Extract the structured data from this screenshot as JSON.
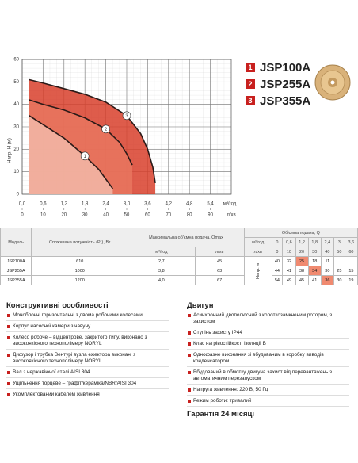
{
  "chart_data": {
    "type": "line",
    "y_label": "Напр. H (м)",
    "x_unit": "м³/год",
    "x2_unit": "л/хв",
    "grid": true,
    "xlim": [
      0,
      6
    ],
    "xticks": [
      {
        "value": 0,
        "label": "0,0"
      },
      {
        "value": 0.6,
        "label": "0,6"
      },
      {
        "value": 1.2,
        "label": "1,2"
      },
      {
        "value": 1.8,
        "label": "1,8"
      },
      {
        "value": 2.4,
        "label": "2,4"
      },
      {
        "value": 3,
        "label": "3,0"
      },
      {
        "value": 3.6,
        "label": "3,6"
      },
      {
        "value": 4.2,
        "label": "4,2"
      },
      {
        "value": 4.8,
        "label": "4,8"
      },
      {
        "value": 5.4,
        "label": "5,4"
      }
    ],
    "x2lim": [
      0,
      100
    ],
    "x2ticks": [
      0,
      10,
      20,
      30,
      40,
      50,
      60,
      70,
      80,
      90
    ],
    "ylim": [
      0,
      60
    ],
    "yticks": [
      0,
      10,
      20,
      30,
      40,
      50,
      60
    ],
    "legend_color": "#c8201e",
    "series": [
      {
        "name": "JSP100A",
        "marker": "1",
        "color": "#f2b8a8",
        "x": [
          0.2,
          0.6,
          1.2,
          1.8,
          2.2,
          2.6
        ],
        "values": [
          35,
          31,
          25,
          17,
          11,
          2.5
        ]
      },
      {
        "name": "JSP255A",
        "marker": "2",
        "color": "#e9765f",
        "x": [
          0.2,
          0.6,
          1.2,
          1.8,
          2.4,
          2.8,
          3,
          3.16
        ],
        "values": [
          42,
          40,
          37.5,
          34,
          29,
          23,
          18,
          13
        ]
      },
      {
        "name": "JSP355A",
        "marker": "3",
        "color": "#d8402c",
        "x": [
          0.2,
          0.6,
          1.2,
          1.8,
          2.4,
          3,
          3.4,
          3.6,
          3.75,
          3.82
        ],
        "values": [
          51,
          49.5,
          47,
          44.5,
          41,
          35,
          27,
          20,
          12,
          5
        ]
      }
    ]
  },
  "table": {
    "headers": {
      "model": "Модель",
      "power": "Споживана потужність (P₁), Вт",
      "qmax": "Максимальна об'ємна подача, Qmax",
      "qmax_units": [
        "м³/год",
        "л/хв"
      ],
      "flow": "Об'ємна подача, Q",
      "flow_units": [
        "м³/год",
        "л/хв"
      ],
      "flow_m3h": [
        "0",
        "0,6",
        "1,2",
        "1,8",
        "2,4",
        "3",
        "3,6"
      ],
      "flow_lmin": [
        "0",
        "10",
        "20",
        "30",
        "40",
        "50",
        "60"
      ],
      "head_label": "Напр. м"
    },
    "rows": [
      {
        "model": "JSP100A",
        "power": "610",
        "qmax_m3h": "2,7",
        "qmax_lmin": "45",
        "heads": [
          "40",
          "32",
          "25",
          "18",
          "11",
          null,
          null
        ],
        "highlight": 2
      },
      {
        "model": "JSP255A",
        "power": "1000",
        "qmax_m3h": "3,8",
        "qmax_lmin": "63",
        "heads": [
          "44",
          "41",
          "38",
          "34",
          "30",
          "25",
          "15"
        ],
        "highlight": 3
      },
      {
        "model": "JSP355A",
        "power": "1200",
        "qmax_m3h": "4,0",
        "qmax_lmin": "67",
        "heads": [
          "54",
          "49",
          "45",
          "41",
          "36",
          "30",
          "19"
        ],
        "highlight": 4
      }
    ]
  },
  "features": {
    "title": "Конструктивні особливості",
    "items": [
      "Моноблочні горизонтальні з двома робочими колесами",
      "Корпус насосної камери з чавуну",
      "Колесо робоче – відцентрове, закритого типу, виконано з високоякісного технополімеру NORYL",
      "Дифузор і трубка Вентурі вузла ежектора виконані з високоякісного технополімеру NORYL",
      "Вал з нержавіючої сталі AISI 304",
      "Ущільнення торцеве – графіт/кераміка/NBR/AISI 304",
      "Укомплектований кабелем живлення"
    ]
  },
  "motor": {
    "title": "Двигун",
    "items": [
      "Асинхронний двополюсний з короткозамкненим ротором, з захистом",
      "Ступінь захисту IP44",
      "Клас нагрівостійкості ізоляції B",
      "Однофазне виконання зі вбудованим в коробку виводів конденсатором",
      "Вбудований в обмотку двигуна захист від перевантажень з автоматичним перезапуском",
      "Напруга живлення: 220 В, 50 Гц",
      "Режим роботи: тривалий"
    ]
  },
  "warranty": "Гарантія 24 місяці"
}
